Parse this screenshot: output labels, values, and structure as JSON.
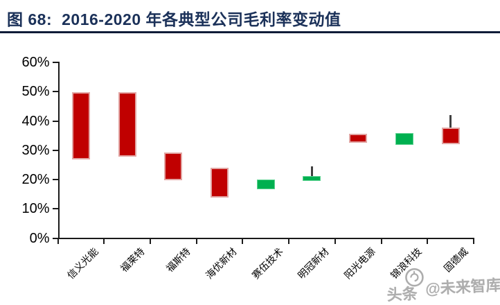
{
  "figure": {
    "label": "图 68:",
    "title": "2016-2020 年各典型公司毛利率变动值"
  },
  "watermark": {
    "left_text": "头条",
    "right_text": "@未来智库",
    "logo": "toutiao-circle-logo",
    "color": "#adadad"
  },
  "chart_data": {
    "type": "candlestick",
    "title": "2016-2020 年各典型公司毛利率变动值",
    "categories": [
      "信义光能",
      "福莱特",
      "福斯特",
      "海优新材",
      "赛伍技术",
      "明冠新材",
      "阳光电源",
      "锦浪科技",
      "固德威"
    ],
    "points": [
      {
        "company": "信义光能",
        "open": 26.8,
        "close": 49.8,
        "direction": "up"
      },
      {
        "company": "福莱特",
        "open": 27.9,
        "close": 49.9,
        "direction": "up"
      },
      {
        "company": "福斯特",
        "open": 19.7,
        "close": 29.3,
        "direction": "up"
      },
      {
        "company": "海优新材",
        "open": 13.8,
        "close": 24.1,
        "direction": "up"
      },
      {
        "company": "赛伍技术",
        "open": 20.0,
        "close": 16.6,
        "direction": "down"
      },
      {
        "company": "明冠新材",
        "open": 21.3,
        "close": 19.5,
        "high": 24.6,
        "direction": "down"
      },
      {
        "company": "阳光电源",
        "open": 32.6,
        "close": 35.7,
        "direction": "up"
      },
      {
        "company": "锦浪科技",
        "open": 35.9,
        "close": 31.8,
        "direction": "down"
      },
      {
        "company": "固德威",
        "open": 32.0,
        "close": 37.7,
        "high": 41.9,
        "direction": "up"
      }
    ],
    "up_color": "#c00000",
    "down_color": "#00b050",
    "whisker_color": "#404040",
    "yticks": [
      0,
      10,
      20,
      30,
      40,
      50,
      60
    ],
    "ytick_labels": [
      "0%",
      "10%",
      "20%",
      "30%",
      "40%",
      "50%",
      "60%"
    ],
    "ylim": [
      0,
      60
    ],
    "grid": false,
    "legend": null
  }
}
